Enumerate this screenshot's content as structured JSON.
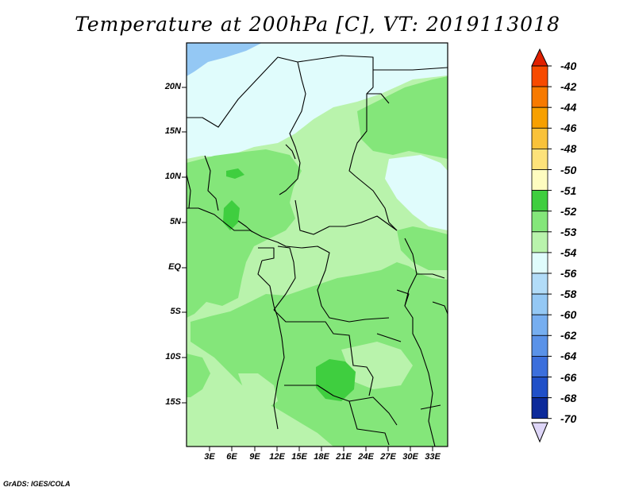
{
  "title": "Temperature at 200hPa [C], VT: 2019113018",
  "credit": "GrADS: IGES/COLA",
  "map": {
    "lat_labels": [
      "20N",
      "15N",
      "10N",
      "5N",
      "EQ",
      "5S",
      "10S",
      "15S"
    ],
    "lon_labels": [
      "3E",
      "6E",
      "9E",
      "12E",
      "15E",
      "18E",
      "21E",
      "24E",
      "27E",
      "30E",
      "33E"
    ],
    "colors": {
      "land_light": "#b9f3ac",
      "mid_green": "#84e67a",
      "dark_green": "#3fce3f",
      "pale_cyan": "#e0fcfc",
      "light_blue": "#94c8f4",
      "border": "#000000"
    }
  },
  "colorbar": {
    "levels": [
      {
        "label": "-40",
        "color": "#f02000"
      },
      {
        "label": "-42",
        "color": "#f74a00"
      },
      {
        "label": "-44",
        "color": "#f77a00"
      },
      {
        "label": "-46",
        "color": "#f7a000"
      },
      {
        "label": "-48",
        "color": "#f9c23a"
      },
      {
        "label": "-50",
        "color": "#fde27a"
      },
      {
        "label": "-51",
        "color": "#fefcc0"
      },
      {
        "label": "-52",
        "color": "#3fce3f"
      },
      {
        "label": "-53",
        "color": "#84e67a"
      },
      {
        "label": "-54",
        "color": "#b9f3ac"
      },
      {
        "label": "-56",
        "color": "#e0fcfc"
      },
      {
        "label": "-58",
        "color": "#b2dcf8"
      },
      {
        "label": "-60",
        "color": "#94c8f4"
      },
      {
        "label": "-62",
        "color": "#76aef0"
      },
      {
        "label": "-64",
        "color": "#5a92e8"
      },
      {
        "label": "-66",
        "color": "#3c6fdc"
      },
      {
        "label": "-68",
        "color": "#2050c8"
      },
      {
        "label": "-70",
        "color": "#0c2a9a"
      }
    ],
    "over_color": "#e02000",
    "under_color": "#ded6f8"
  }
}
